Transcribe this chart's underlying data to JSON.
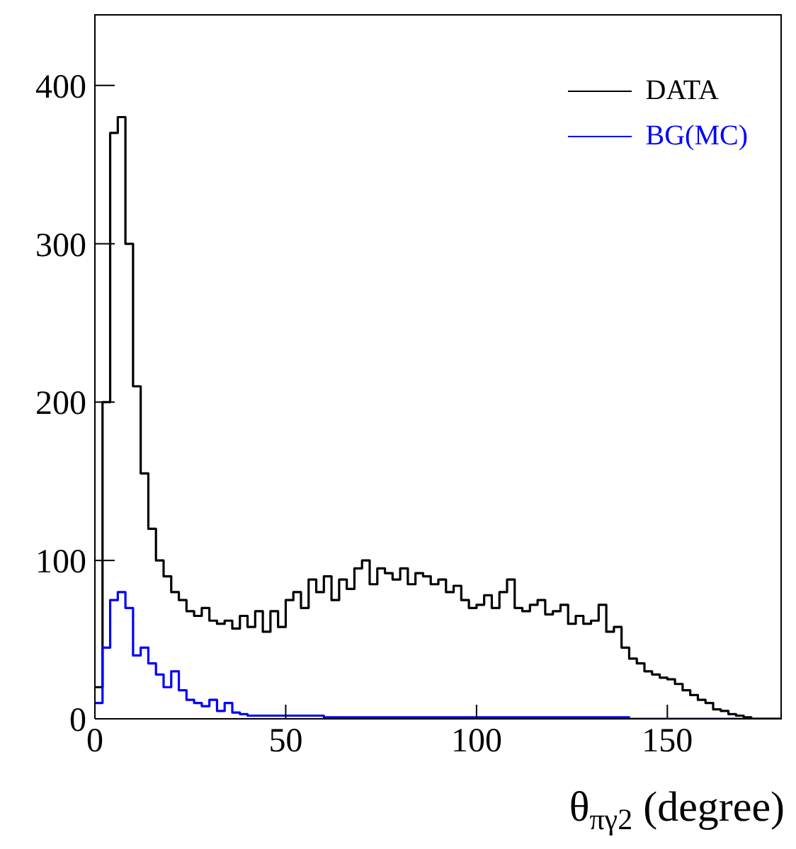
{
  "chart_data": {
    "type": "histogram",
    "xlabel": "θ$_{πγ2}$ (degree)",
    "bins": [
      0,
      2,
      4,
      6,
      8,
      10,
      12,
      14,
      16,
      18,
      20,
      22,
      24,
      26,
      28,
      30,
      32,
      34,
      36,
      38,
      40,
      42,
      44,
      46,
      48,
      50,
      52,
      54,
      56,
      58,
      60,
      62,
      64,
      66,
      68,
      70,
      72,
      74,
      76,
      78,
      80,
      82,
      84,
      86,
      88,
      90,
      92,
      94,
      96,
      98,
      100,
      102,
      104,
      106,
      108,
      110,
      112,
      114,
      116,
      118,
      120,
      122,
      124,
      126,
      128,
      130,
      132,
      134,
      136,
      138,
      140,
      142,
      144,
      146,
      148,
      150,
      152,
      154,
      156,
      158,
      160,
      162,
      164,
      166,
      168,
      170,
      172,
      174,
      176,
      178,
      180
    ],
    "series": [
      {
        "name": "DATA",
        "color": "#000000",
        "values": [
          20,
          200,
          370,
          380,
          300,
          210,
          155,
          120,
          100,
          90,
          80,
          75,
          68,
          65,
          70,
          62,
          60,
          62,
          57,
          65,
          58,
          68,
          55,
          68,
          58,
          75,
          80,
          70,
          88,
          80,
          90,
          75,
          88,
          82,
          95,
          100,
          85,
          95,
          92,
          88,
          95,
          85,
          92,
          90,
          85,
          88,
          80,
          84,
          75,
          70,
          72,
          78,
          70,
          80,
          88,
          70,
          68,
          72,
          75,
          66,
          68,
          72,
          60,
          65,
          60,
          62,
          72,
          55,
          58,
          45,
          38,
          35,
          30,
          28,
          26,
          25,
          22,
          18,
          15,
          12,
          10,
          6,
          5,
          3,
          2,
          1,
          0,
          0,
          0,
          0
        ]
      },
      {
        "name": "BG(MC)",
        "color": "#0000ff",
        "values": [
          10,
          45,
          75,
          80,
          70,
          40,
          45,
          35,
          28,
          20,
          30,
          18,
          12,
          10,
          8,
          12,
          5,
          10,
          4,
          3,
          2,
          2,
          2,
          2,
          2,
          2,
          2,
          2,
          2,
          2,
          1,
          1,
          1,
          1,
          1,
          1,
          1,
          1,
          1,
          1,
          1,
          1,
          1,
          1,
          1,
          1,
          1,
          1,
          1,
          1,
          1,
          1,
          1,
          1,
          1,
          1,
          1,
          1,
          1,
          1,
          1,
          1,
          1,
          1,
          1,
          1,
          1,
          1,
          1,
          1,
          0,
          0,
          0,
          0,
          0,
          0,
          0,
          0,
          0,
          0,
          0,
          0,
          0,
          0,
          0,
          0,
          0,
          0,
          0,
          0
        ]
      }
    ],
    "xlim": [
      0,
      180
    ],
    "xticks": [
      0,
      50,
      100,
      150
    ],
    "ylim": [
      0,
      445
    ],
    "yticks": [
      0,
      100,
      200,
      300,
      400
    ],
    "grid": false,
    "legend": "top right"
  }
}
